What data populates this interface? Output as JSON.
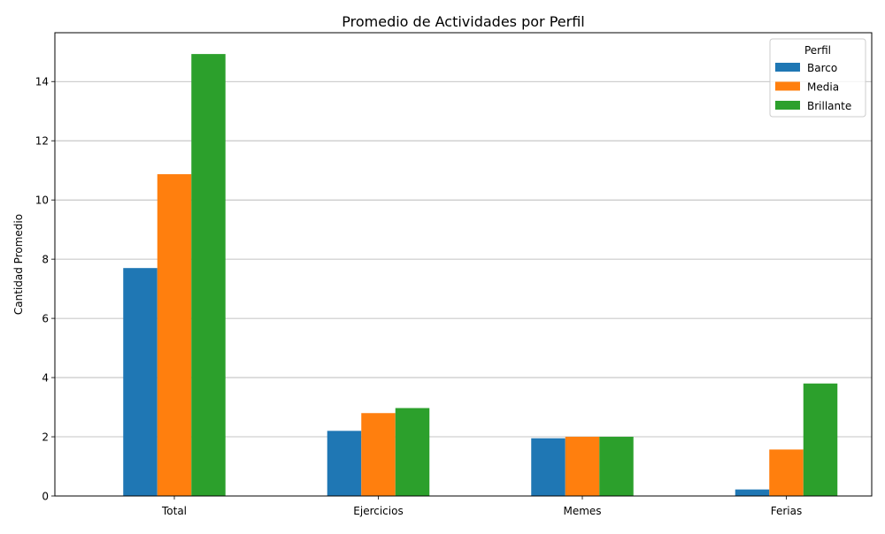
{
  "chart_data": {
    "type": "bar",
    "title": "Promedio de Actividades por Perfil",
    "xlabel": "",
    "ylabel": "Cantidad Promedio",
    "categories": [
      "Total",
      "Ejercicios",
      "Memes",
      "Ferias"
    ],
    "series": [
      {
        "name": "Barco",
        "color": "#1f77b4",
        "values": [
          7.7,
          2.2,
          1.95,
          0.22
        ]
      },
      {
        "name": "Media",
        "color": "#ff7f0e",
        "values": [
          10.87,
          2.8,
          2.0,
          1.57
        ]
      },
      {
        "name": "Brillante",
        "color": "#2ca02c",
        "values": [
          14.93,
          2.97,
          2.0,
          3.8
        ]
      }
    ],
    "ylim": [
      0,
      15.65
    ],
    "yticks": [
      0,
      2,
      4,
      6,
      8,
      10,
      12,
      14
    ],
    "grid": "y",
    "legend": {
      "title": "Perfil",
      "placement": "top-right"
    }
  }
}
